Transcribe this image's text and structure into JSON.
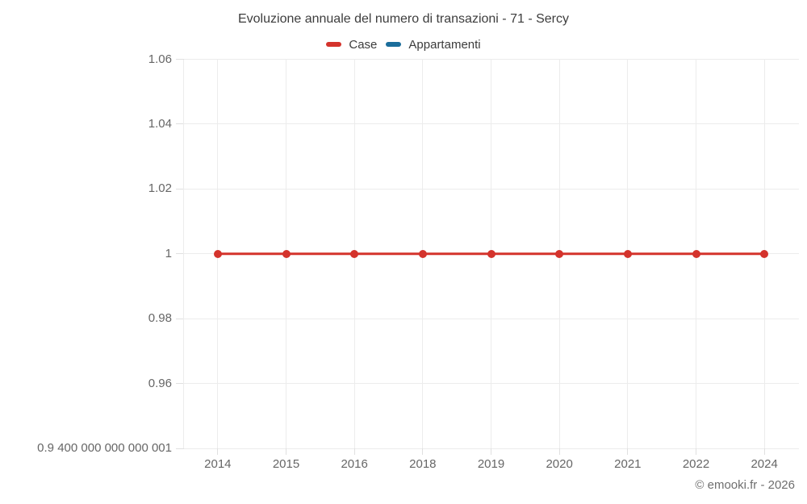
{
  "header": {
    "title": "Evoluzione annuale del numero di transazioni - 71 - Sercy"
  },
  "legend": {
    "items": [
      {
        "label": "Case",
        "color": "#d4332c"
      },
      {
        "label": "Appartamenti",
        "color": "#1b6d9b"
      }
    ]
  },
  "chart_data": {
    "type": "line",
    "title": "Evoluzione annuale del numero di transazioni - 71 - Sercy",
    "categories": [
      "2014",
      "2015",
      "2016",
      "2018",
      "2019",
      "2020",
      "2021",
      "2022",
      "2024"
    ],
    "series": [
      {
        "name": "Case",
        "color": "#d4332c",
        "values": [
          1,
          1,
          1,
          1,
          1,
          1,
          1,
          1,
          1
        ]
      },
      {
        "name": "Appartamenti",
        "color": "#1b6d9b",
        "values": []
      }
    ],
    "xlabel": "",
    "ylabel": "",
    "ylim": [
      0.94,
      1.06
    ],
    "y_ticks": [
      {
        "value": 1.06,
        "label": "1.06"
      },
      {
        "value": 1.04,
        "label": "1.04"
      },
      {
        "value": 1.02,
        "label": "1.02"
      },
      {
        "value": 1.0,
        "label": "1"
      },
      {
        "value": 0.98,
        "label": "0.98"
      },
      {
        "value": 0.96,
        "label": "0.96"
      },
      {
        "value": 0.94,
        "label": "0.9 400 000 000 000 001"
      }
    ],
    "grid": true,
    "legend_position": "top"
  },
  "footer": {
    "copyright": "© emooki.fr - 2026"
  }
}
